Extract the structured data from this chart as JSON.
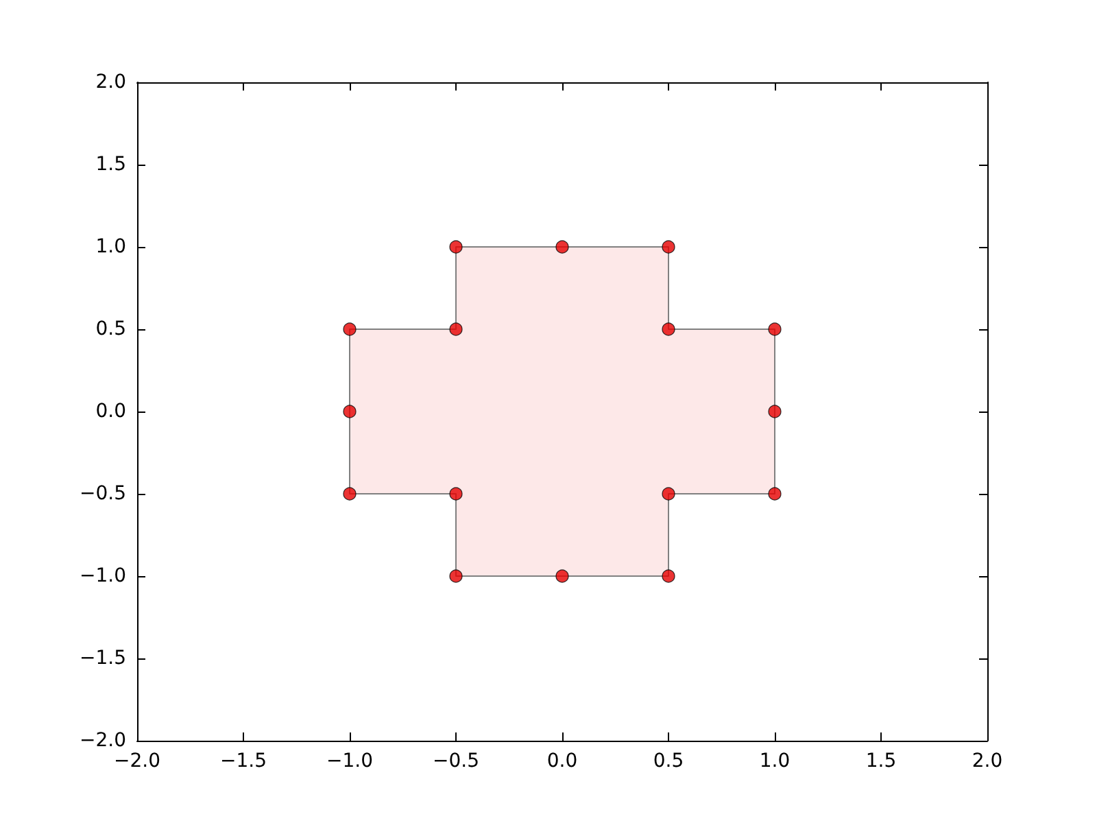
{
  "chart_data": {
    "type": "scatter",
    "grid": false,
    "xlim": [
      -2,
      2
    ],
    "ylim": [
      -2,
      2
    ],
    "xticks": [
      {
        "value": -2,
        "label": "−2.0"
      },
      {
        "value": -1.5,
        "label": "−1.5"
      },
      {
        "value": -1,
        "label": "−1.0"
      },
      {
        "value": -0.5,
        "label": "−0.5"
      },
      {
        "value": 0,
        "label": "0.0"
      },
      {
        "value": 0.5,
        "label": "0.5"
      },
      {
        "value": 1,
        "label": "1.0"
      },
      {
        "value": 1.5,
        "label": "1.5"
      },
      {
        "value": 2,
        "label": "2.0"
      }
    ],
    "yticks": [
      {
        "value": -2,
        "label": "−2.0"
      },
      {
        "value": -1.5,
        "label": "−1.5"
      },
      {
        "value": -1,
        "label": "−1.0"
      },
      {
        "value": -0.5,
        "label": "−0.5"
      },
      {
        "value": 0,
        "label": "0.0"
      },
      {
        "value": 0.5,
        "label": "0.5"
      },
      {
        "value": 1,
        "label": "1.0"
      },
      {
        "value": 1.5,
        "label": "1.5"
      },
      {
        "value": 2,
        "label": "2.0"
      }
    ],
    "series": [
      {
        "type": "area",
        "color": "#fde8e8",
        "x": [
          -0.5,
          0.5,
          0.5,
          1,
          1,
          0.5,
          0.5,
          -0.5,
          -0.5,
          -1,
          -1,
          -0.5
        ],
        "values": [
          1,
          1,
          0.5,
          0.5,
          -0.5,
          -0.5,
          -1,
          -1,
          -0.5,
          -0.5,
          0.5,
          0.5
        ]
      },
      {
        "marker": "circle",
        "color": "#e60000",
        "x": [
          -0.5,
          0,
          0.5,
          0.5,
          1,
          1,
          1,
          0.5,
          0.5,
          0,
          -0.5,
          -0.5,
          -1,
          -1,
          -1,
          -0.5
        ],
        "values": [
          1,
          1,
          1,
          0.5,
          0.5,
          0,
          -0.5,
          -0.5,
          -1,
          -1,
          -1,
          -0.5,
          -0.5,
          0,
          0.5,
          0.5
        ]
      }
    ]
  }
}
